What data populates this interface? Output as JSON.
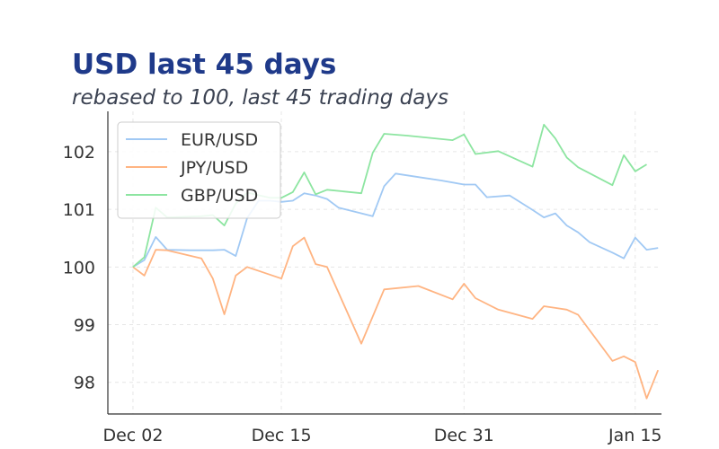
{
  "chart_data": {
    "type": "line",
    "title": "USD last 45 days",
    "subtitle": "rebased to 100, last 45 trading days",
    "xlabel": "",
    "ylabel": "",
    "x_ticks": [
      {
        "label": "Dec 02",
        "day": 1
      },
      {
        "label": "Dec 15",
        "day": 14
      },
      {
        "label": "Dec 31",
        "day": 30
      },
      {
        "label": "Jan 15",
        "day": 45
      }
    ],
    "xlim": [
      -1.2,
      47.3
    ],
    "ylim": [
      97.45,
      102.7
    ],
    "y_ticks": [
      98,
      99,
      100,
      101,
      102
    ],
    "grid": true,
    "legend_position": "upper-left",
    "colors": {
      "EUR/USD": "#a1c9f4",
      "JPY/USD": "#ffb482",
      "GBP/USD": "#8de5a1",
      "axis": "#333333",
      "grid": "#e6e6e6"
    },
    "series": [
      {
        "name": "EUR/USD",
        "points": [
          [
            1,
            100.0
          ],
          [
            2,
            100.12
          ],
          [
            3,
            100.52
          ],
          [
            4,
            100.3
          ],
          [
            6,
            100.29
          ],
          [
            8,
            100.29
          ],
          [
            9,
            100.3
          ],
          [
            10,
            100.19
          ],
          [
            11,
            100.85
          ],
          [
            12,
            101.15
          ],
          [
            13,
            101.15
          ],
          [
            14,
            101.13
          ],
          [
            15,
            101.15
          ],
          [
            16,
            101.28
          ],
          [
            17,
            101.24
          ],
          [
            18,
            101.18
          ],
          [
            19,
            101.03
          ],
          [
            22,
            100.88
          ],
          [
            23,
            101.4
          ],
          [
            24,
            101.62
          ],
          [
            26,
            101.56
          ],
          [
            28,
            101.5
          ],
          [
            30,
            101.43
          ],
          [
            31,
            101.43
          ],
          [
            32,
            101.21
          ],
          [
            34,
            101.24
          ],
          [
            36,
            100.99
          ],
          [
            37,
            100.86
          ],
          [
            38,
            100.93
          ],
          [
            39,
            100.72
          ],
          [
            40,
            100.6
          ],
          [
            41,
            100.43
          ],
          [
            43,
            100.25
          ],
          [
            44,
            100.15
          ],
          [
            45,
            100.51
          ],
          [
            46,
            100.3
          ],
          [
            47,
            100.33
          ]
        ]
      },
      {
        "name": "JPY/USD",
        "points": [
          [
            1,
            100.0
          ],
          [
            2,
            99.85
          ],
          [
            3,
            100.3
          ],
          [
            4,
            100.29
          ],
          [
            7,
            100.15
          ],
          [
            8,
            99.8
          ],
          [
            9,
            99.18
          ],
          [
            10,
            99.85
          ],
          [
            11,
            100.0
          ],
          [
            14,
            99.8
          ],
          [
            15,
            100.36
          ],
          [
            16,
            100.51
          ],
          [
            17,
            100.05
          ],
          [
            18,
            100.0
          ],
          [
            21,
            98.67
          ],
          [
            23,
            99.61
          ],
          [
            26,
            99.67
          ],
          [
            29,
            99.44
          ],
          [
            30,
            99.71
          ],
          [
            31,
            99.46
          ],
          [
            33,
            99.26
          ],
          [
            36,
            99.1
          ],
          [
            37,
            99.32
          ],
          [
            38,
            99.29
          ],
          [
            39,
            99.26
          ],
          [
            40,
            99.17
          ],
          [
            43,
            98.37
          ],
          [
            44,
            98.45
          ],
          [
            45,
            98.35
          ],
          [
            46,
            97.72
          ],
          [
            47,
            98.21
          ]
        ]
      },
      {
        "name": "GBP/USD",
        "points": [
          [
            1,
            100.0
          ],
          [
            2,
            100.17
          ],
          [
            3,
            101.03
          ],
          [
            4,
            100.86
          ],
          [
            7,
            100.88
          ],
          [
            8,
            100.9
          ],
          [
            9,
            100.72
          ],
          [
            10,
            101.1
          ],
          [
            11,
            101.29
          ],
          [
            13,
            101.2
          ],
          [
            14,
            101.2
          ],
          [
            15,
            101.3
          ],
          [
            16,
            101.64
          ],
          [
            17,
            101.26
          ],
          [
            18,
            101.34
          ],
          [
            21,
            101.28
          ],
          [
            22,
            101.98
          ],
          [
            23,
            102.31
          ],
          [
            25,
            102.28
          ],
          [
            29,
            102.2
          ],
          [
            30,
            102.3
          ],
          [
            31,
            101.96
          ],
          [
            33,
            102.01
          ],
          [
            36,
            101.74
          ],
          [
            37,
            102.47
          ],
          [
            38,
            102.23
          ],
          [
            39,
            101.9
          ],
          [
            40,
            101.73
          ],
          [
            43,
            101.42
          ],
          [
            44,
            101.94
          ],
          [
            45,
            101.66
          ],
          [
            46,
            101.78
          ]
        ]
      }
    ]
  }
}
